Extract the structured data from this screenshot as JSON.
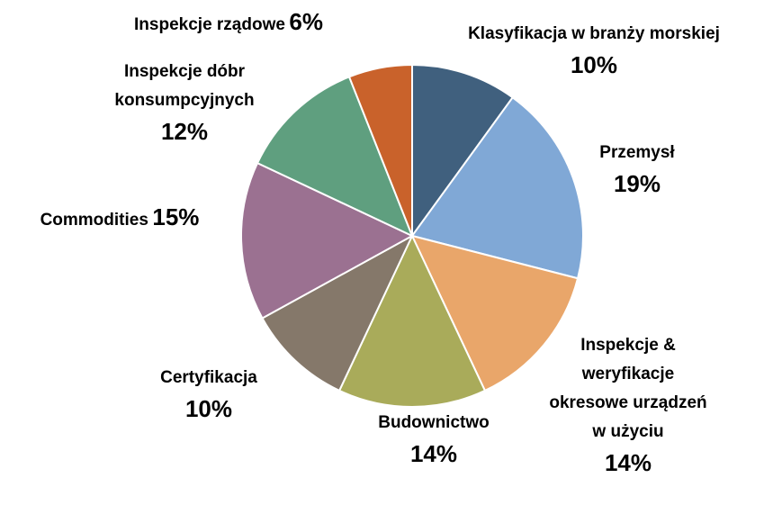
{
  "chart_data": {
    "type": "pie",
    "categories": [
      "Klasyfikacja w branży morskiej",
      "Przemysł",
      "Inspekcje & weryfikacje okresowe urządzeń w użyciu",
      "Budownictwo",
      "Certyfikacja",
      "Commodities",
      "Inspekcje dóbr konsumpcyjnych",
      "Inspekcje rządowe"
    ],
    "values": [
      10,
      19,
      14,
      14,
      10,
      15,
      12,
      6
    ],
    "value_labels": [
      "10%",
      "19%",
      "14%",
      "14%",
      "10%",
      "15%",
      "12%",
      "6%"
    ],
    "colors": [
      "#40607e",
      "#80a8d6",
      "#e9a66a",
      "#a9ab5a",
      "#85786a",
      "#9b7191",
      "#5f9f7f",
      "#c9622b"
    ]
  }
}
